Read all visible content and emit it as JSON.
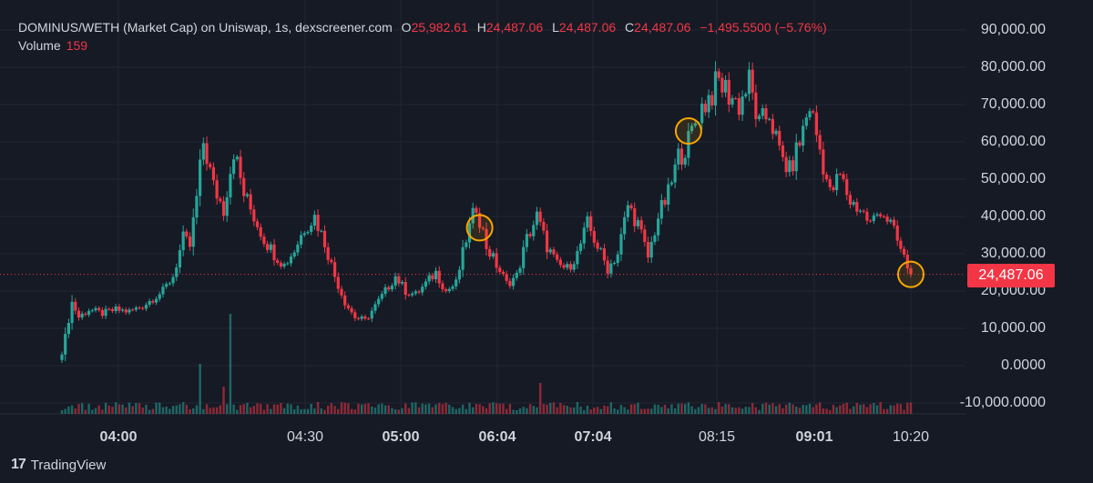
{
  "header": {
    "symbol": "DOMINUS/WETH (Market Cap) on Uniswap, 1s, dexscreener.com",
    "open_label": "O",
    "open_value": "25,982.61",
    "high_label": "H",
    "high_value": "24,487.06",
    "low_label": "L",
    "low_value": "24,487.06",
    "close_label": "C",
    "close_value": "24,487.06",
    "change": "−1,495.5500 (−5.76%)",
    "volume_label": "Volume",
    "volume_value": "159"
  },
  "price_tag": "24,487.06",
  "branding": {
    "logo_icon": "tradingview-logo-icon",
    "name": "TradingView"
  },
  "colors": {
    "background": "#161a25",
    "up": "#26a69a",
    "down": "#f23645",
    "marker": "#f7a600",
    "grid": "#232734"
  },
  "chart_data": {
    "type": "candlestick",
    "y_tick_labels": [
      "90,000.00",
      "80,000.00",
      "70,000.00",
      "60,000.00",
      "50,000.00",
      "40,000.00",
      "30,000.00",
      "20,000.00",
      "10,000.00",
      "0.0000",
      "-10,000.0000"
    ],
    "ylim": [
      -12000,
      94000
    ],
    "x_tick_labels": [
      {
        "label": "04:00",
        "bold": true
      },
      {
        "label": "04:30",
        "bold": false
      },
      {
        "label": "05:00",
        "bold": true
      },
      {
        "label": "06:04",
        "bold": true
      },
      {
        "label": "07:04",
        "bold": true
      },
      {
        "label": "08:15",
        "bold": false
      },
      {
        "label": "09:01",
        "bold": true
      },
      {
        "label": "10:20",
        "bold": false
      }
    ],
    "last_price": 24487.06,
    "close_path": [
      [
        0,
        3000
      ],
      [
        3,
        17000
      ],
      [
        5,
        13000
      ],
      [
        8,
        15000
      ],
      [
        12,
        14000
      ],
      [
        16,
        15000
      ],
      [
        20,
        14500
      ],
      [
        24,
        16000
      ],
      [
        27,
        18000
      ],
      [
        30,
        20000
      ],
      [
        33,
        24000
      ],
      [
        36,
        34000
      ],
      [
        38,
        32000
      ],
      [
        40,
        45000
      ],
      [
        42,
        60000
      ],
      [
        45,
        48000
      ],
      [
        48,
        42000
      ],
      [
        51,
        58000
      ],
      [
        54,
        46000
      ],
      [
        57,
        40000
      ],
      [
        60,
        34000
      ],
      [
        63,
        30000
      ],
      [
        66,
        27000
      ],
      [
        69,
        31000
      ],
      [
        72,
        37000
      ],
      [
        75,
        40000
      ],
      [
        78,
        33000
      ],
      [
        81,
        24000
      ],
      [
        84,
        17000
      ],
      [
        87,
        13000
      ],
      [
        90,
        12000
      ],
      [
        93,
        16000
      ],
      [
        96,
        20000
      ],
      [
        99,
        24000
      ],
      [
        102,
        20000
      ],
      [
        105,
        19000
      ],
      [
        108,
        22000
      ],
      [
        111,
        25000
      ],
      [
        114,
        20000
      ],
      [
        117,
        22000
      ],
      [
        120,
        34000
      ],
      [
        123,
        43000
      ],
      [
        126,
        32000
      ],
      [
        129,
        27000
      ],
      [
        132,
        22000
      ],
      [
        135,
        24000
      ],
      [
        138,
        34000
      ],
      [
        141,
        40000
      ],
      [
        144,
        32000
      ],
      [
        147,
        27000
      ],
      [
        150,
        26000
      ],
      [
        153,
        30000
      ],
      [
        156,
        38000
      ],
      [
        159,
        32000
      ],
      [
        162,
        26000
      ],
      [
        165,
        30000
      ],
      [
        168,
        43000
      ],
      [
        171,
        38000
      ],
      [
        174,
        29000
      ],
      [
        177,
        40000
      ],
      [
        180,
        46000
      ],
      [
        183,
        56000
      ],
      [
        186,
        60000
      ],
      [
        189,
        68000
      ],
      [
        192,
        72000
      ],
      [
        195,
        76000
      ],
      [
        198,
        73000
      ],
      [
        201,
        70000
      ],
      [
        204,
        76000
      ],
      [
        207,
        64000
      ],
      [
        210,
        68000
      ],
      [
        213,
        57000
      ],
      [
        216,
        52000
      ],
      [
        219,
        60000
      ],
      [
        222,
        70000
      ],
      [
        225,
        58000
      ],
      [
        228,
        46000
      ],
      [
        231,
        51000
      ],
      [
        234,
        44000
      ],
      [
        237,
        42000
      ],
      [
        240,
        38000
      ],
      [
        243,
        42000
      ],
      [
        246,
        38000
      ],
      [
        249,
        31000
      ],
      [
        252,
        24487
      ]
    ],
    "markers_at_index": [
      124,
      186,
      252
    ]
  }
}
